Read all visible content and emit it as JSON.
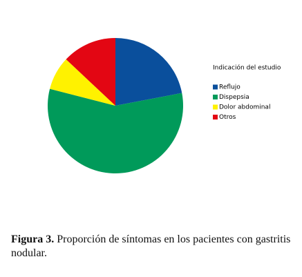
{
  "chart_data": {
    "type": "pie",
    "legend_title": "Indicación del estudio",
    "categories": [
      "Reflujo",
      "Dispepsia",
      "Dolor abdominal",
      "Otros"
    ],
    "values": [
      22,
      57,
      8,
      13
    ],
    "colors": [
      "#0a4f9c",
      "#009a5a",
      "#fff200",
      "#e30613"
    ],
    "caption_label": "Figura 3.",
    "caption": "Proporción de síntomas en los pacientes con gastritis nodular."
  }
}
